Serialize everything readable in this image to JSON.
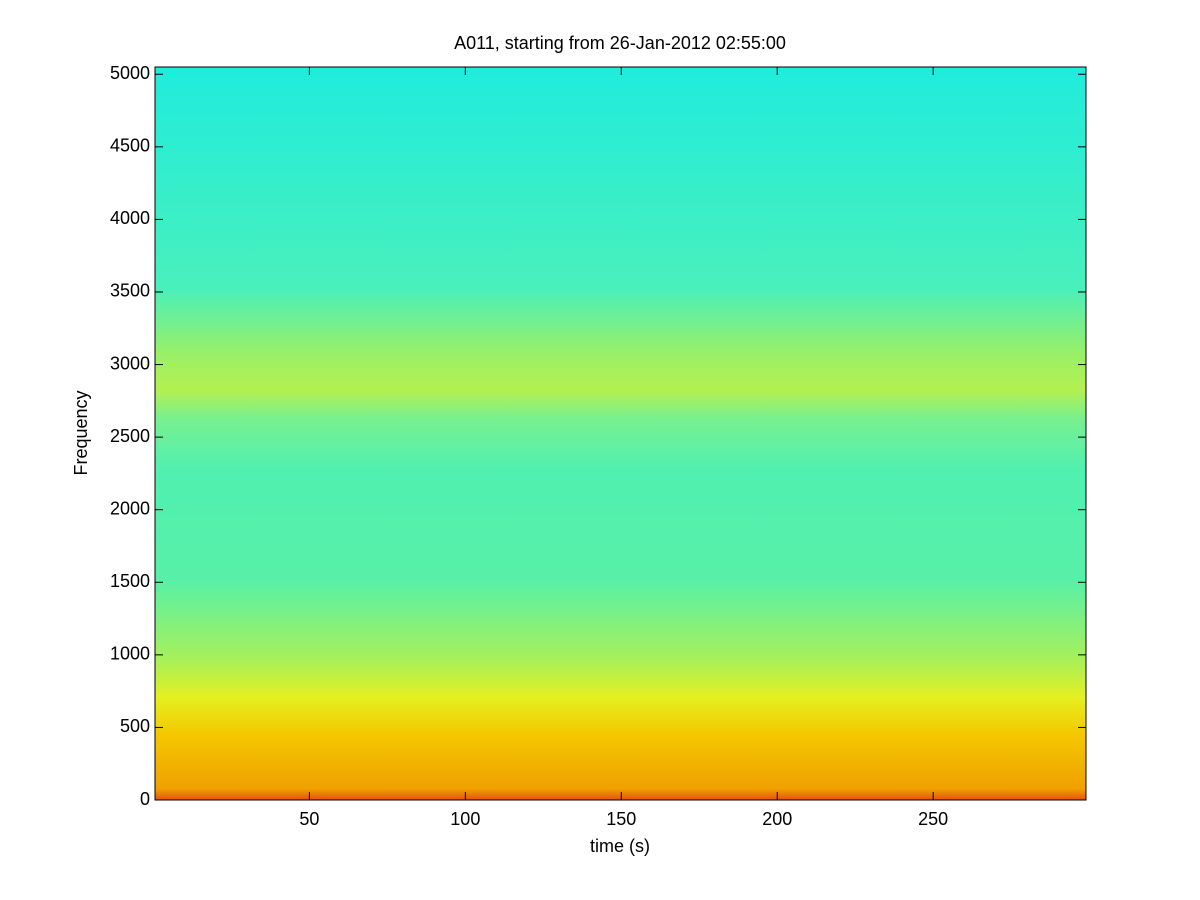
{
  "chart_data": {
    "type": "spectrogram",
    "title": "A011, starting from 26-Jan-2012 02:55:00",
    "x_label": "time (s)",
    "y_label": "Frequency",
    "xlim": [
      0.5,
      299
    ],
    "xticks": [
      50,
      100,
      150,
      200,
      250
    ],
    "ylim": [
      0,
      5050
    ],
    "yticks": [
      0,
      500,
      1000,
      1500,
      2000,
      2500,
      3000,
      3500,
      4000,
      4500,
      5000
    ]
  }
}
